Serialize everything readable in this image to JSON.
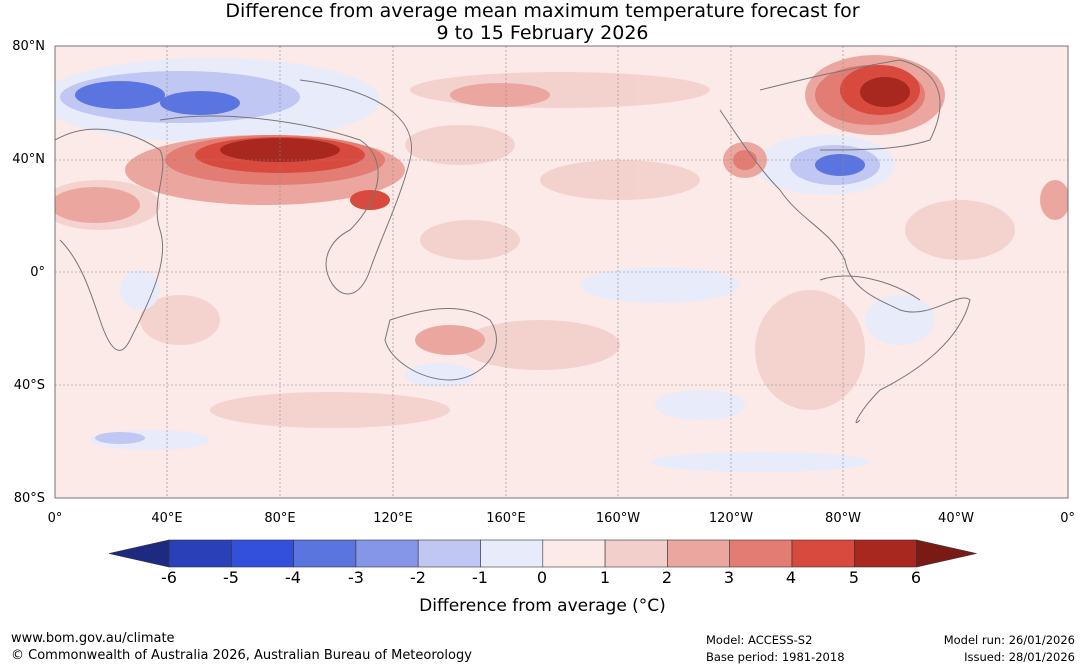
{
  "title": {
    "line1": "Difference from average mean maximum temperature forecast for",
    "line2": "9 to 15 February 2026"
  },
  "map": {
    "lat_labels": [
      "80°N",
      "40°N",
      "0°",
      "40°S",
      "80°S"
    ],
    "lon_labels": [
      "0°",
      "40°E",
      "80°E",
      "120°E",
      "160°E",
      "160°W",
      "120°W",
      "80°W",
      "40°W",
      "0°"
    ],
    "background_color": "#fbeae8",
    "anomaly_regions": [
      {
        "name": "central-asia-warm",
        "level": 6
      },
      {
        "name": "northeast-canada-warm",
        "level": 5
      },
      {
        "name": "southeast-usa-cool",
        "level": -3
      },
      {
        "name": "siberia-cool",
        "level": -3
      },
      {
        "name": "australia-warm",
        "level": 2
      },
      {
        "name": "west-usa-warm",
        "level": 3
      }
    ]
  },
  "colorbar": {
    "ticks": [
      "-6",
      "-5",
      "-4",
      "-3",
      "-2",
      "-1",
      "0",
      "1",
      "2",
      "3",
      "4",
      "5",
      "6"
    ],
    "colors": [
      "#1e2a80",
      "#2a40b8",
      "#3350dc",
      "#5a74e0",
      "#8595e8",
      "#bfc7f2",
      "#e8ebfa",
      "#fbeae8",
      "#f3cfcb",
      "#eba79f",
      "#e37d74",
      "#d84a3e",
      "#a8281f",
      "#7a1a14"
    ],
    "label": "Difference from average (°C)"
  },
  "footer": {
    "website": "www.bom.gov.au/climate",
    "copyright": "© Commonwealth of Australia 2026, Australian Bureau of Meteorology",
    "model": "Model: ACCESS-S2",
    "base_period": "Base period: 1981-2018",
    "model_run": "Model run: 26/01/2026",
    "issued": "Issued: 28/01/2026"
  }
}
